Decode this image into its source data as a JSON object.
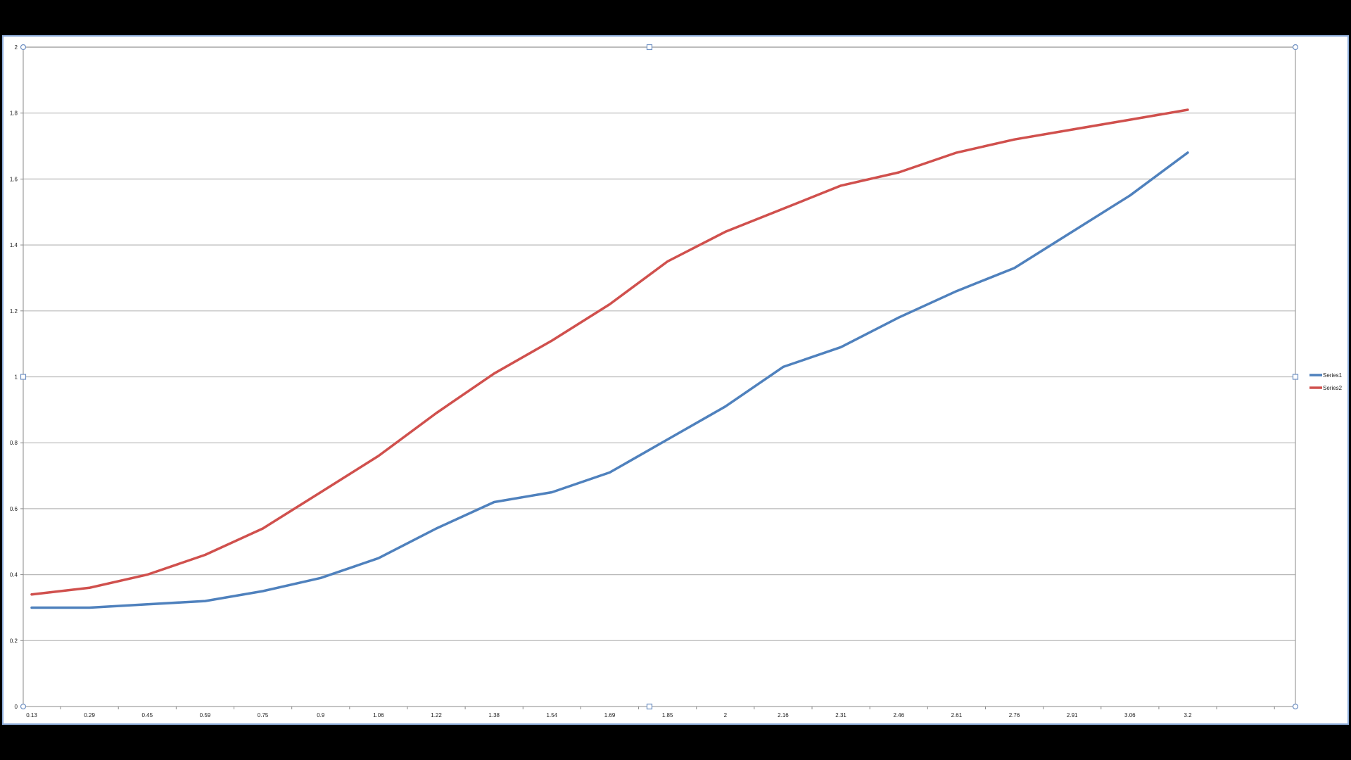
{
  "chart_data": {
    "type": "line",
    "title": "",
    "xlabel": "",
    "ylabel": "",
    "categories": [
      "0.13",
      "0.29",
      "0.45",
      "0.59",
      "0.75",
      "0.9",
      "1.06",
      "1.22",
      "1.38",
      "1.54",
      "1.69",
      "1.85",
      "2",
      "2.16",
      "2.31",
      "2.46",
      "2.61",
      "2.76",
      "2.91",
      "3.06",
      "3.2"
    ],
    "series": [
      {
        "name": "Series1",
        "color": "#4f81bd",
        "values": [
          0.3,
          0.3,
          0.31,
          0.32,
          0.35,
          0.39,
          0.45,
          0.54,
          0.62,
          0.65,
          0.71,
          0.81,
          0.91,
          1.03,
          1.09,
          1.18,
          1.26,
          1.33,
          1.44,
          1.55,
          1.68
        ]
      },
      {
        "name": "Series2",
        "color": "#d0504d",
        "values": [
          0.34,
          0.36,
          0.4,
          0.46,
          0.54,
          0.65,
          0.76,
          0.89,
          1.01,
          1.11,
          1.22,
          1.35,
          1.44,
          1.51,
          1.58,
          1.62,
          1.68,
          1.72,
          1.75,
          1.78,
          1.81
        ]
      }
    ],
    "ylim": [
      0,
      2
    ],
    "yticks": [
      "0",
      "0.2",
      "0.4",
      "0.6",
      "0.8",
      "1",
      "1.2",
      "1.4",
      "1.6",
      "1.8",
      "2"
    ],
    "grid": true,
    "legend_position": "right"
  }
}
